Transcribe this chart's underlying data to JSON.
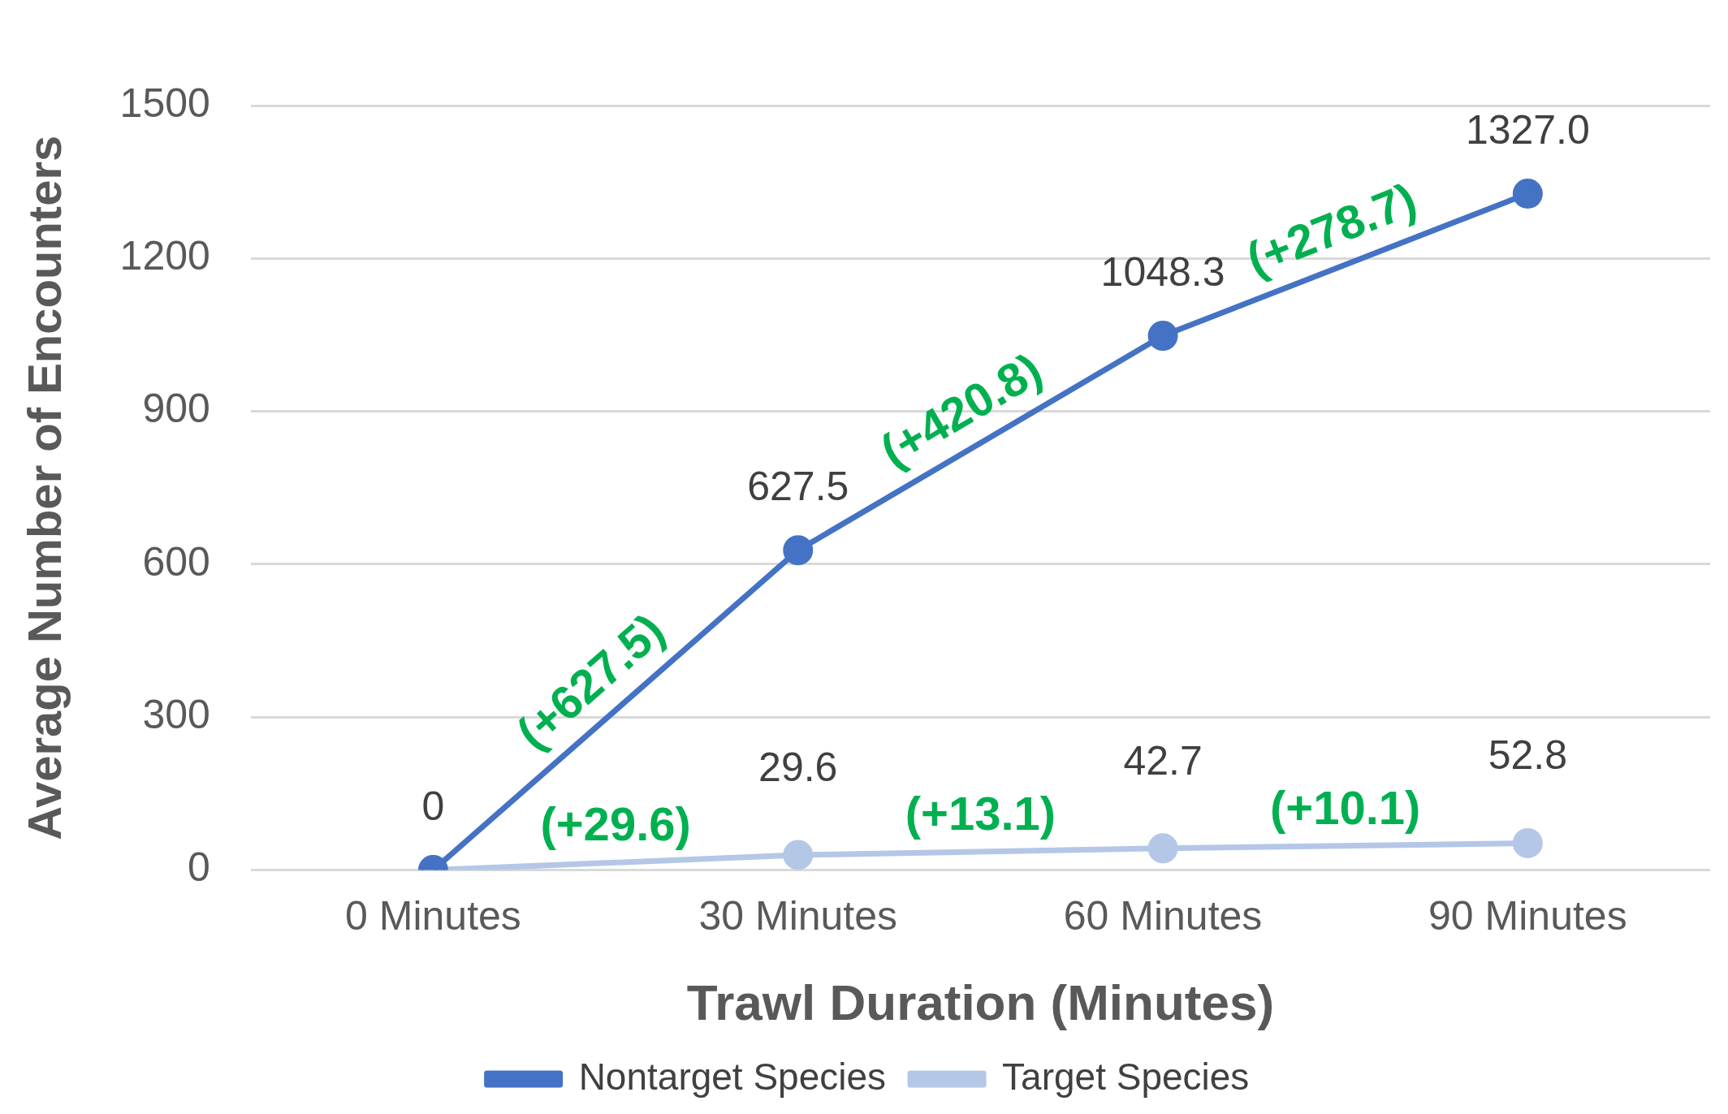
{
  "chart_data": {
    "type": "line",
    "xlabel": "Trawl Duration (Minutes)",
    "ylabel": "Average Number of Encounters",
    "categories": [
      "0 Minutes",
      "30 Minutes",
      "60 Minutes",
      "90 Minutes"
    ],
    "series": [
      {
        "name": "Nontarget Species",
        "color": "#4472c4",
        "values": [
          0,
          627.5,
          1048.3,
          1327.0
        ],
        "value_labels": [
          "0",
          "627.5",
          "1048.3",
          "1327.0"
        ]
      },
      {
        "name": "Target Species",
        "color": "#b4c7e7",
        "values": [
          0,
          29.6,
          42.7,
          52.8
        ],
        "value_labels": [
          null,
          "29.6",
          "42.7",
          "52.8"
        ]
      }
    ],
    "ylim": [
      0,
      1500
    ],
    "yticks": [
      0,
      300,
      600,
      900,
      1200,
      1500
    ],
    "grid": "y",
    "legend": "bottom",
    "marker": "circle",
    "line_style": "solid",
    "annotations": [
      {
        "text": "(+627.5)",
        "x": "30 Minutes",
        "y": 627.5
      },
      {
        "text": "(+420.8)",
        "x": "60 Minutes",
        "y": 1048.3
      },
      {
        "text": "(+278.7)",
        "x": "90 Minutes",
        "y": 1327.0
      },
      {
        "text": "(+29.6)",
        "x": "30 Minutes",
        "y": 29.6
      },
      {
        "text": "(+13.1)",
        "x": "60 Minutes",
        "y": 42.7
      },
      {
        "text": "(+10.1)",
        "x": "90 Minutes",
        "y": 52.8
      }
    ]
  }
}
